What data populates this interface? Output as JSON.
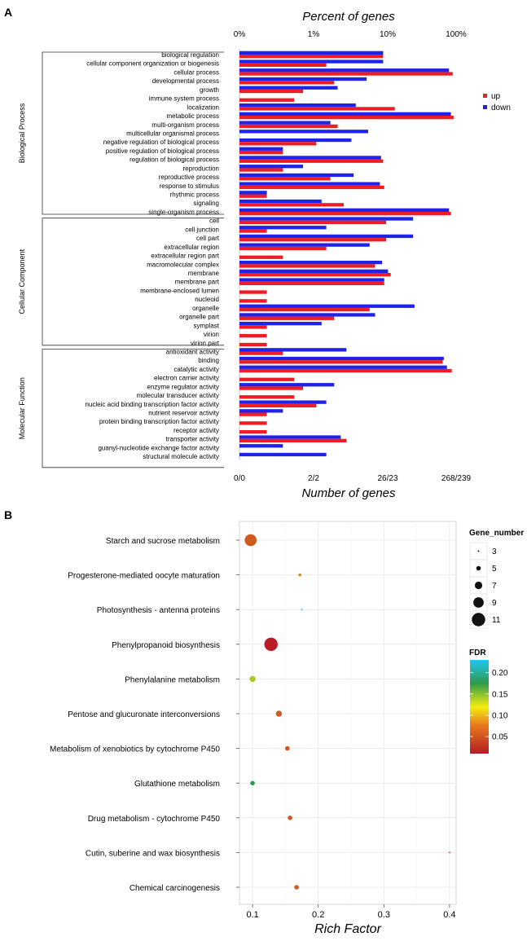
{
  "panel_a": {
    "panel_label": "A",
    "top_axis_title": "Percent of genes",
    "bottom_axis_title": "Number of genes",
    "top_ticks": [
      "0%",
      "1%",
      "10%",
      "100%"
    ],
    "bottom_ticks": [
      "0/0",
      "2/2",
      "26/23",
      "268/239"
    ],
    "legend": [
      {
        "label": "up",
        "color": "#ee1c24"
      },
      {
        "label": "down",
        "color": "#1f22e8"
      }
    ],
    "groups": [
      {
        "label": "Biological Process",
        "first": 0,
        "last": 18
      },
      {
        "label": "Cellular Component",
        "first": 19,
        "last": 33
      },
      {
        "label": "Molecular Function",
        "first": 34,
        "last": 47
      }
    ]
  },
  "panel_b": {
    "panel_label": "B",
    "x_axis_title": "Rich Factor",
    "size_legend_title": "Gene_number",
    "size_legend_values": [
      "3",
      "5",
      "7",
      "9",
      "11"
    ],
    "color_legend_title": "FDR",
    "color_legend_ticks": [
      "0.20",
      "0.15",
      "0.10",
      "0.05"
    ],
    "x_ticks": [
      "0.1",
      "0.2",
      "0.3",
      "0.4"
    ]
  },
  "chart_data": [
    {
      "type": "bar",
      "orientation": "horizontal",
      "title": "",
      "xlabel": "Number of genes",
      "x2label": "Percent of genes",
      "scale": "log",
      "categories": [
        "biological regulation",
        "cellular component organization or biogenesis",
        "cellular process",
        "developmental process",
        "growth",
        "immune system process",
        "localization",
        "metabolic process",
        "multi-organism process",
        "multicellular organismal process",
        "negative regulation of biological process",
        "positive regulation of biological process",
        "regulation of biological process",
        "reproduction",
        "reproductive process",
        "response to stimulus",
        "rhythmic process",
        "signaling",
        "single-organism process",
        "cell",
        "cell junction",
        "cell part",
        "extracellular region",
        "extracellular region part",
        "macromolecular complex",
        "membrane",
        "membrane part",
        "membrane-enclosed lumen",
        "nucleoid",
        "organelle",
        "organelle part",
        "symplast",
        "virion",
        "virion part",
        "antioxidant activity",
        "binding",
        "catalytic activity",
        "electron carrier activity",
        "enzyme regulator activity",
        "molecular transducer activity",
        "nucleic acid binding transcription factor activity",
        "nutrient reservoir activity",
        "protein binding transcription factor activity",
        "receptor activity",
        "transporter activity",
        "guanyl-nucleotide exchange factor activity",
        "structural molecule activity"
      ],
      "series": [
        {
          "name": "up",
          "values": [
            37,
            8,
            220,
            10,
            4,
            3,
            50,
            225,
            11,
            0,
            6,
            2,
            37,
            2,
            9,
            38,
            1,
            13,
            210,
            40,
            1,
            40,
            8,
            2,
            30,
            45,
            38,
            1,
            1,
            26,
            10,
            1,
            1,
            1,
            2,
            170,
            215,
            3,
            4,
            3,
            6,
            1,
            1,
            1,
            14,
            0,
            0
          ]
        },
        {
          "name": "down",
          "values": [
            37,
            37,
            200,
            24,
            11,
            0,
            18,
            210,
            9,
            25,
            16,
            2,
            35,
            4,
            17,
            34,
            1,
            7,
            200,
            80,
            8,
            80,
            26,
            0,
            36,
            42,
            38,
            0,
            0,
            83,
            30,
            7,
            0,
            0,
            14,
            175,
            190,
            0,
            10,
            0,
            8,
            2,
            0,
            0,
            12,
            2,
            8
          ]
        }
      ],
      "group_labels": [
        "Biological Process",
        "Cellular Component",
        "Molecular Function"
      ]
    },
    {
      "type": "scatter",
      "title": "",
      "xlabel": "Rich Factor",
      "ylabel": "",
      "xlim": [
        0.08,
        0.41
      ],
      "categories": [
        "Starch and sucrose metabolism",
        "Progesterone-mediated oocyte maturation",
        "Photosynthesis - antenna proteins",
        "Phenylpropanoid biosynthesis",
        "Phenylalanine metabolism",
        "Pentose and glucuronate interconversions",
        "Metabolism of xenobiotics by cytochrome P450",
        "Glutathione metabolism",
        "Drug metabolism - cytochrome P450",
        "Cutin, suberine and wax biosynthesis",
        "Chemical carcinogenesis"
      ],
      "points": [
        {
          "term": "Starch and sucrose metabolism",
          "rich_factor": 0.097,
          "gene_number": 10,
          "fdr": 0.04,
          "color": "#cf5a1e"
        },
        {
          "term": "Progesterone-mediated oocyte maturation",
          "rich_factor": 0.172,
          "gene_number": 4,
          "fdr": 0.07,
          "color": "#dd8a20"
        },
        {
          "term": "Photosynthesis - antenna proteins",
          "rich_factor": 0.175,
          "gene_number": 3,
          "fdr": 0.22,
          "color": "#1ec8f0"
        },
        {
          "term": "Phenylpropanoid biosynthesis",
          "rich_factor": 0.128,
          "gene_number": 11,
          "fdr": 0.02,
          "color": "#bb1a26"
        },
        {
          "term": "Phenylalanine metabolism",
          "rich_factor": 0.1,
          "gene_number": 6,
          "fdr": 0.11,
          "color": "#a6cc1c"
        },
        {
          "term": "Pentose and glucuronate interconversions",
          "rich_factor": 0.14,
          "gene_number": 6,
          "fdr": 0.04,
          "color": "#d35822"
        },
        {
          "term": "Metabolism of xenobiotics by cytochrome P450",
          "rich_factor": 0.153,
          "gene_number": 5,
          "fdr": 0.04,
          "color": "#d35822"
        },
        {
          "term": "Glutathione metabolism",
          "rich_factor": 0.1,
          "gene_number": 5,
          "fdr": 0.16,
          "color": "#2e9a4a"
        },
        {
          "term": "Drug metabolism - cytochrome P450",
          "rich_factor": 0.157,
          "gene_number": 5,
          "fdr": 0.04,
          "color": "#d35822"
        },
        {
          "term": "Cutin, suberine and wax biosynthesis",
          "rich_factor": 0.4,
          "gene_number": 3,
          "fdr": 0.04,
          "color": "#d35822"
        },
        {
          "term": "Chemical carcinogenesis",
          "rich_factor": 0.167,
          "gene_number": 5,
          "fdr": 0.04,
          "color": "#d35822"
        }
      ],
      "size_legend": {
        "title": "Gene_number",
        "values": [
          3,
          5,
          7,
          9,
          11
        ]
      },
      "color_legend": {
        "title": "FDR",
        "range": [
          0.01,
          0.23
        ],
        "ticks": [
          0.05,
          0.1,
          0.15,
          0.2
        ]
      }
    }
  ]
}
